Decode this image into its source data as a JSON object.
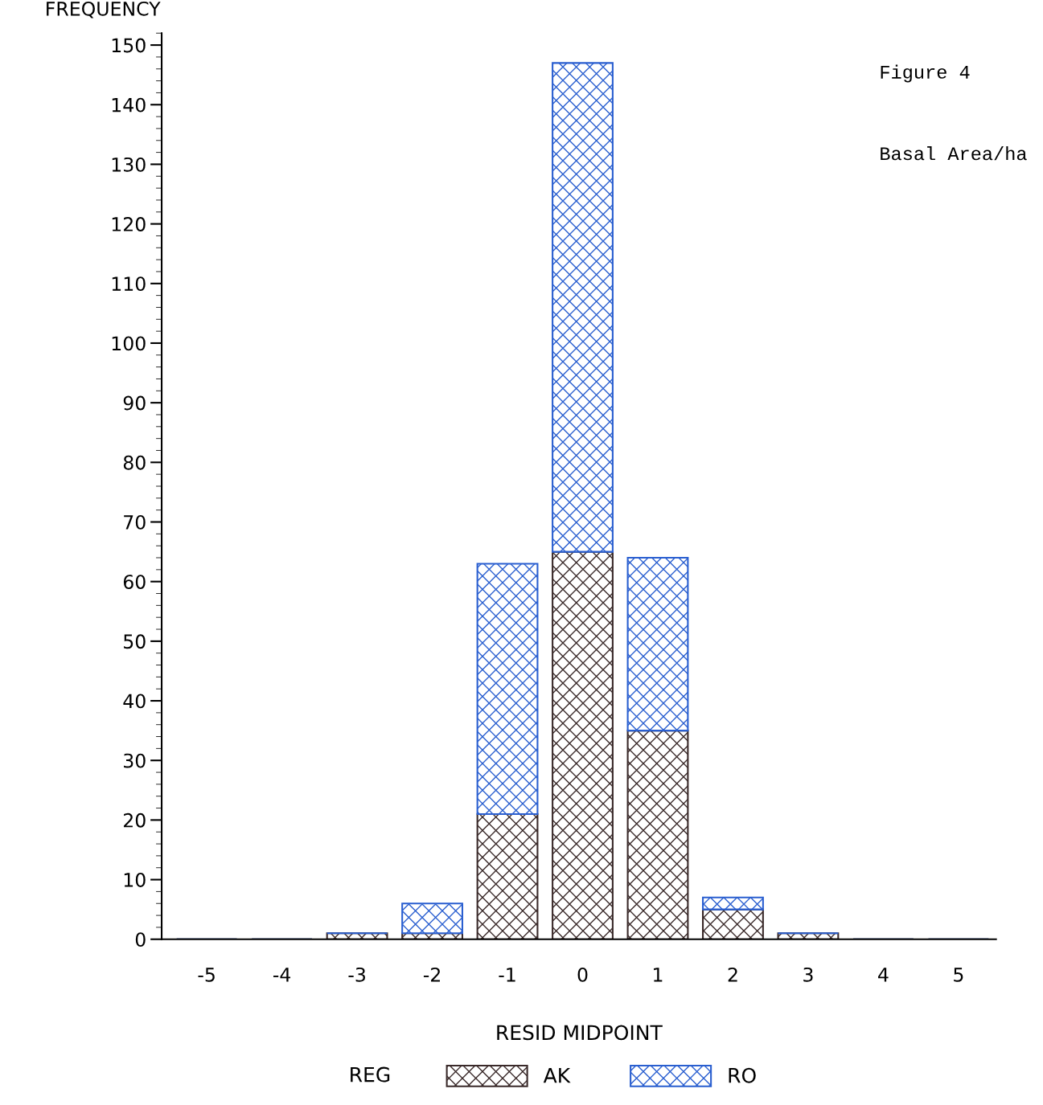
{
  "chart_data": {
    "type": "bar",
    "stacked": true,
    "ylabel": "FREQUENCY",
    "xlabel": "RESID MIDPOINT",
    "legend_title": "REG",
    "legend": "bottom",
    "grid": false,
    "annotations": [
      "Figure 4",
      "Basal Area/ha"
    ],
    "categories": [
      "-5",
      "-4",
      "-3",
      "-2",
      "-1",
      "0",
      "1",
      "2",
      "3",
      "4",
      "5"
    ],
    "series": [
      {
        "name": "AK",
        "color": "#3a2a2a",
        "values": [
          0,
          0,
          1,
          1,
          21,
          65,
          35,
          5,
          1,
          0,
          0
        ]
      },
      {
        "name": "RO",
        "color": "#2a5fd0",
        "values": [
          0,
          0,
          0,
          5,
          42,
          82,
          29,
          2,
          0,
          0,
          0
        ]
      }
    ],
    "ylim": [
      0,
      152
    ],
    "yticks": [
      0,
      10,
      20,
      30,
      40,
      50,
      60,
      70,
      80,
      90,
      100,
      110,
      120,
      130,
      140,
      150
    ]
  }
}
